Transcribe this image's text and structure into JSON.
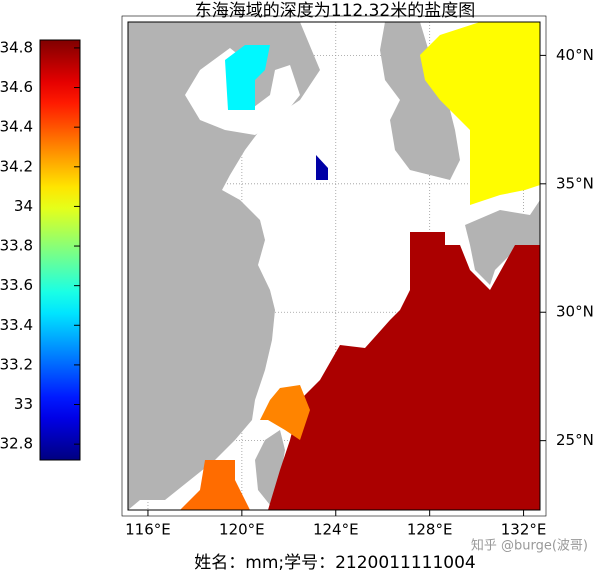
{
  "title": "东海海域的深度为112.32米的盐度图",
  "colorbar": {
    "clim": [
      32.72,
      34.84
    ],
    "ticks": [
      32.8,
      33,
      33.2,
      33.4,
      33.6,
      33.8,
      34,
      34.2,
      34.4,
      34.6,
      34.8
    ]
  },
  "map": {
    "lon_range": [
      115.15,
      132.7
    ],
    "lat_range": [
      22.3,
      41.3
    ],
    "grid": true,
    "lon_ticks": [
      {
        "value": 116,
        "label": "116°E"
      },
      {
        "value": 120,
        "label": "120°E"
      },
      {
        "value": 124,
        "label": "124°E"
      },
      {
        "value": 128,
        "label": "128°E"
      },
      {
        "value": 132,
        "label": "132°E"
      }
    ],
    "lat_ticks": [
      {
        "value": 25,
        "label": "25°N"
      },
      {
        "value": 30,
        "label": "30°N"
      },
      {
        "value": 35,
        "label": "35°N"
      },
      {
        "value": 40,
        "label": "40°N"
      }
    ],
    "salinity_patches": [
      {
        "value": 34.75
      },
      {
        "value": 34.3
      },
      {
        "value": 34.35
      },
      {
        "value": 34.05
      },
      {
        "value": 33.5
      },
      {
        "value": 32.8
      }
    ]
  },
  "footer": "姓名：mm;学号：2120011111004",
  "watermark": "知乎 @burge(波哥)"
}
